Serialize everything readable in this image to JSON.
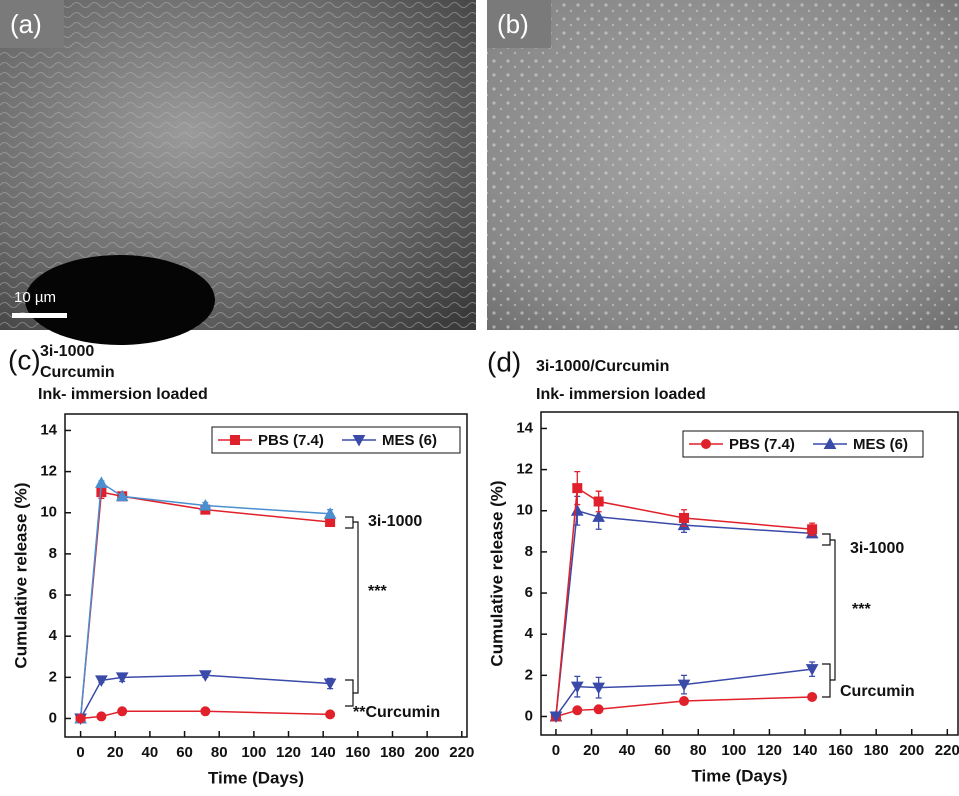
{
  "images": [
    {
      "label": "(a)",
      "scale_bar": "10 µm"
    },
    {
      "label": "(b)"
    }
  ],
  "chart_data": [
    {
      "type": "line",
      "panel": "(c)",
      "title_lines": [
        "3i-1000",
        "Curcumin",
        "Ink- immersion loaded"
      ],
      "x_label": "Time (Days)",
      "y_label": "Cumulative release (%)",
      "x": [
        0,
        12,
        24,
        72,
        144
      ],
      "xlim": [
        -9,
        223
      ],
      "xticks": [
        0,
        20,
        40,
        60,
        80,
        100,
        120,
        140,
        160,
        180,
        200,
        220
      ],
      "ylim": [
        -0.9,
        14.8
      ],
      "yticks": [
        0,
        2,
        4,
        6,
        8,
        10,
        12,
        14
      ],
      "series": [
        {
          "name": "PBS (7.4)",
          "color": "#e0202a",
          "marker": "square",
          "values": [
            0,
            11.0,
            10.8,
            10.15,
            9.55
          ],
          "errors": [
            0,
            0.3,
            0.1,
            0.1,
            0.1
          ]
        },
        {
          "name": "MES (6)",
          "color": "#3a4aa8",
          "marker": "triangle-down",
          "values": [
            0,
            1.85,
            2.0,
            2.1,
            1.7
          ],
          "errors": [
            0,
            0.1,
            0.2,
            0.1,
            0.25
          ]
        },
        {
          "name": "MES (6)",
          "color": "#4a8fd0",
          "marker": "triangle",
          "values": [
            0,
            11.45,
            10.8,
            10.35,
            9.95
          ],
          "errors": [
            0,
            0.1,
            0.1,
            0.15,
            0.2
          ]
        },
        {
          "name": "PBS (7.4)",
          "color": "#e0202a",
          "marker": "circle",
          "values": [
            0,
            0.1,
            0.35,
            0.35,
            0.2
          ],
          "errors": [
            0,
            0.05,
            0.05,
            0.05,
            0.05
          ]
        }
      ],
      "annotations": [
        "3i-1000",
        "***",
        "**Curcumin"
      ]
    },
    {
      "type": "line",
      "panel": "(d)",
      "title_lines": [
        "3i-1000/Curcumin",
        "Ink- immersion loaded"
      ],
      "x_label": "Time (Days)",
      "y_label": "Cumulative release (%)",
      "x": [
        0,
        12,
        24,
        72,
        144
      ],
      "xlim": [
        -8.4,
        226
      ],
      "xticks": [
        0,
        20,
        40,
        60,
        80,
        100,
        120,
        140,
        160,
        180,
        200,
        220
      ],
      "ylim": [
        -0.9,
        14.8
      ],
      "yticks": [
        0,
        2,
        4,
        6,
        8,
        10,
        12,
        14
      ],
      "series": [
        {
          "name": "PBS (7.4)",
          "color": "#e0202a",
          "marker": "circle",
          "values": [
            0,
            0.3,
            0.35,
            0.75,
            0.95
          ],
          "errors": [
            0,
            0.05,
            0.05,
            0.05,
            0.05
          ]
        },
        {
          "name": "MES (6)",
          "color": "#3a4aa8",
          "marker": "triangle",
          "values": [
            0,
            10.0,
            9.7,
            9.3,
            8.9
          ],
          "errors": [
            0,
            0.7,
            0.6,
            0.35,
            0.15
          ]
        },
        {
          "name": "PBS (7.4)",
          "color": "#e0202a",
          "marker": "square",
          "values": [
            0,
            11.1,
            10.45,
            9.65,
            9.1
          ],
          "errors": [
            0,
            0.8,
            0.5,
            0.4,
            0.3
          ]
        },
        {
          "name": "MES (6)",
          "color": "#3a4aa8",
          "marker": "triangle-down",
          "values": [
            0,
            1.45,
            1.4,
            1.55,
            2.3
          ],
          "errors": [
            0,
            0.5,
            0.5,
            0.45,
            0.35
          ]
        }
      ],
      "annotations": [
        "3i-1000",
        "***",
        "Curcumin"
      ]
    }
  ]
}
